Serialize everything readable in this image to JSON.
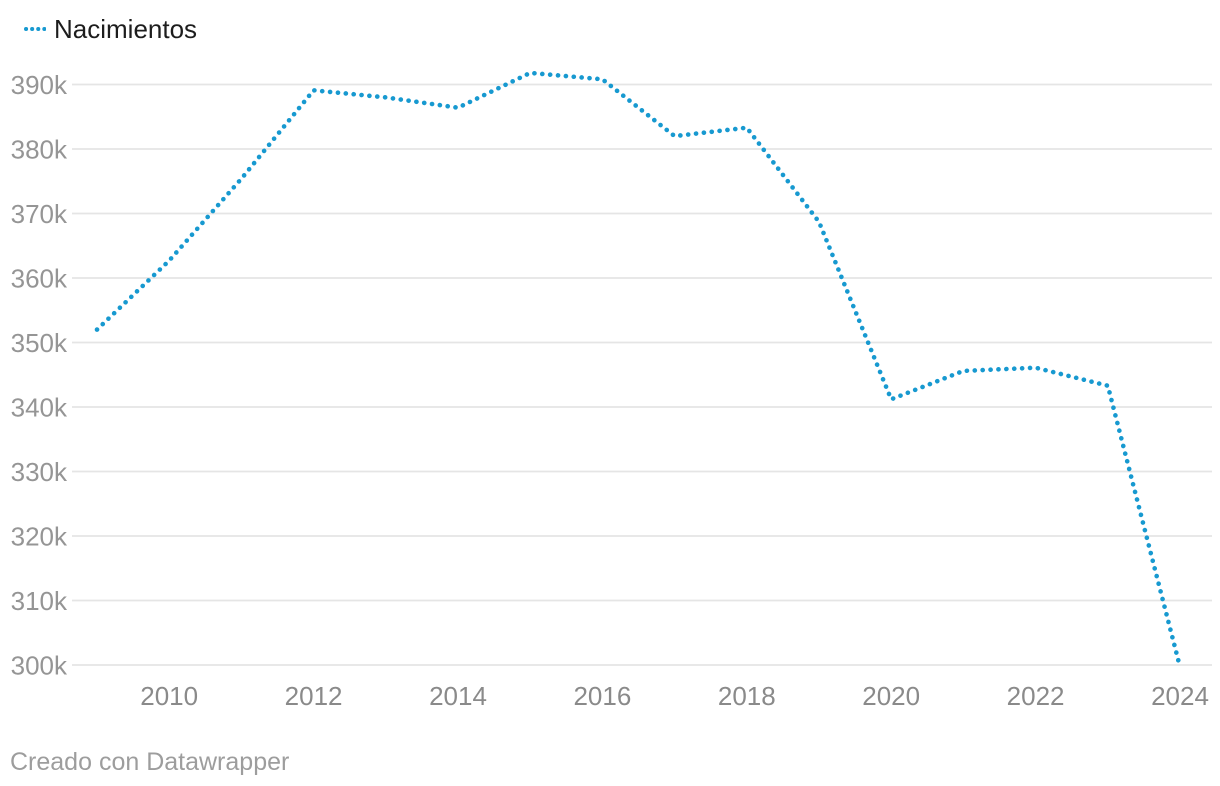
{
  "legend": {
    "items": [
      {
        "label": "Nacimientos",
        "swatch": "dotted-line",
        "color": "#1799d0"
      }
    ]
  },
  "footer": {
    "text": "Creado con Datawrapper"
  },
  "colors": {
    "background": "#ffffff",
    "line": "#1799d0",
    "grid": "#e5e5e5",
    "y_tick_text": "#959595",
    "x_tick_text": "#8a8a8a",
    "legend_text": "#1d1d1d",
    "footer_text": "#9d9d9d"
  },
  "chart_data": {
    "type": "line",
    "line_style": "dotted",
    "title": "",
    "xlabel": "",
    "ylabel": "",
    "grid": "horizontal",
    "legend_position": "top-left",
    "x": [
      2009,
      2010,
      2011,
      2012,
      2013,
      2014,
      2015,
      2016,
      2017,
      2018,
      2019,
      2020,
      2021,
      2022,
      2023,
      2024
    ],
    "series": [
      {
        "name": "Nacimientos",
        "color": "#1799d0",
        "values": [
          352000,
          362700,
          375400,
          389100,
          388000,
          386400,
          391800,
          390800,
          382000,
          383300,
          368700,
          341200,
          345600,
          346100,
          343300,
          299700
        ]
      }
    ],
    "ylim": [
      300000,
      390000
    ],
    "yticks": [
      {
        "value": 300000,
        "label": "300k"
      },
      {
        "value": 310000,
        "label": "310k"
      },
      {
        "value": 320000,
        "label": "320k"
      },
      {
        "value": 330000,
        "label": "330k"
      },
      {
        "value": 340000,
        "label": "340k"
      },
      {
        "value": 350000,
        "label": "350k"
      },
      {
        "value": 360000,
        "label": "360k"
      },
      {
        "value": 370000,
        "label": "370k"
      },
      {
        "value": 380000,
        "label": "380k"
      },
      {
        "value": 390000,
        "label": "390k"
      }
    ],
    "xticks": [
      {
        "value": 2010,
        "label": "2010"
      },
      {
        "value": 2012,
        "label": "2012"
      },
      {
        "value": 2014,
        "label": "2014"
      },
      {
        "value": 2016,
        "label": "2016"
      },
      {
        "value": 2018,
        "label": "2018"
      },
      {
        "value": 2020,
        "label": "2020"
      },
      {
        "value": 2022,
        "label": "2022"
      },
      {
        "value": 2024,
        "label": "2024"
      }
    ]
  }
}
